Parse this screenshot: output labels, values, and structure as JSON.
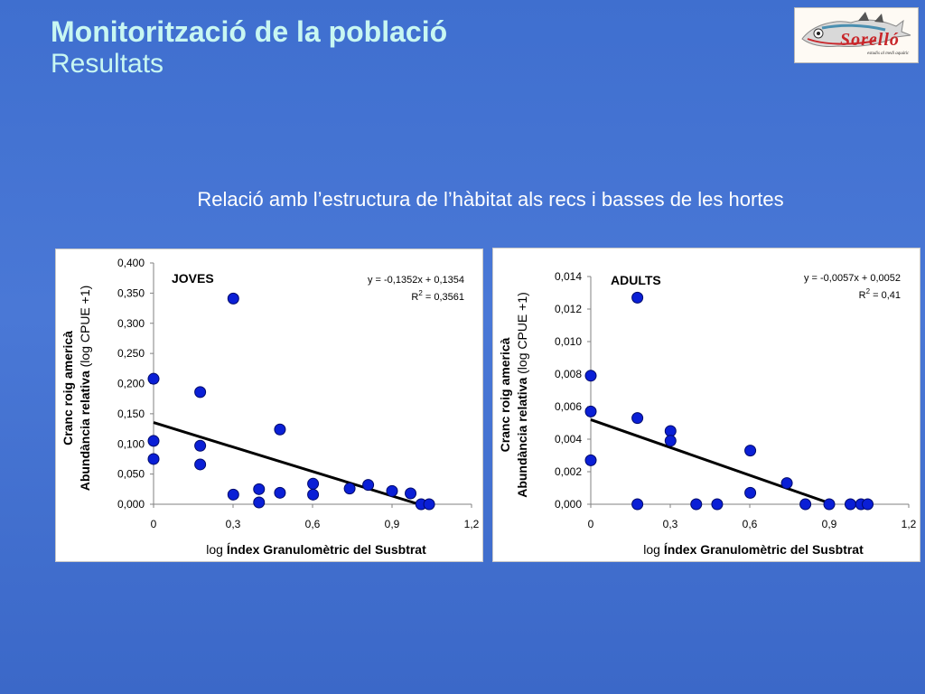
{
  "header": {
    "title": "Monitorització de la població",
    "subtitle": "Resultats",
    "section_heading": "Relació amb l’estructura de l’hàbitat als recs i basses de les hortes"
  },
  "logo": {
    "brand": "Sorelló",
    "tagline": "estudis al medi aquàtic"
  },
  "chart_data": [
    {
      "type": "scatter",
      "label": "JOVES",
      "xlabel_prefix": "log ",
      "xlabel_bold": "Índex Granulomètric del Susbtrat",
      "ylabel_line1": "Cranc roig americà",
      "ylabel_line2_bold": "Abundància relativa",
      "ylabel_line2_rest": " (log CPUE +1)",
      "xlim": [
        0,
        1.2
      ],
      "ylim": [
        0,
        0.4
      ],
      "xticks": [
        0,
        0.3,
        0.6,
        0.9,
        1.2
      ],
      "xtick_labels": [
        "0",
        "0,3",
        "0,6",
        "0,9",
        "1,2"
      ],
      "yticks": [
        0,
        0.05,
        0.1,
        0.15,
        0.2,
        0.25,
        0.3,
        0.35,
        0.4
      ],
      "ytick_labels": [
        "0,000",
        "0,050",
        "0,100",
        "0,150",
        "0,200",
        "0,250",
        "0,300",
        "0,350",
        "0,400"
      ],
      "equation": "y = -0,1352x + 0,1354",
      "r2_label": "R",
      "r2_sup": "2",
      "r2_value": " = 0,3561",
      "trendline": {
        "slope": -0.1352,
        "intercept": 0.1354,
        "x_range": [
          0,
          1.0015
        ]
      },
      "points": [
        {
          "x": 0,
          "y": 0.208
        },
        {
          "x": 0,
          "y": 0.105
        },
        {
          "x": 0,
          "y": 0.075
        },
        {
          "x": 0.176,
          "y": 0.186
        },
        {
          "x": 0.176,
          "y": 0.097
        },
        {
          "x": 0.176,
          "y": 0.066
        },
        {
          "x": 0.301,
          "y": 0.341
        },
        {
          "x": 0.301,
          "y": 0.016
        },
        {
          "x": 0.398,
          "y": 0.025
        },
        {
          "x": 0.398,
          "y": 0.003
        },
        {
          "x": 0.477,
          "y": 0.124
        },
        {
          "x": 0.477,
          "y": 0.019
        },
        {
          "x": 0.602,
          "y": 0.034
        },
        {
          "x": 0.602,
          "y": 0.016
        },
        {
          "x": 0.74,
          "y": 0.026
        },
        {
          "x": 0.81,
          "y": 0.032
        },
        {
          "x": 0.9,
          "y": 0.022
        },
        {
          "x": 0.97,
          "y": 0.018
        },
        {
          "x": 1.01,
          "y": 0.0
        },
        {
          "x": 1.04,
          "y": 0.0
        }
      ],
      "grid": false,
      "marker_color": "#0a1fd6"
    },
    {
      "type": "scatter",
      "label": "ADULTS",
      "xlabel_prefix": "log ",
      "xlabel_bold": "Índex Granulomètric del Susbtrat",
      "ylabel_line1": "Cranc roig americà",
      "ylabel_line2_bold": "Abundància relativa",
      "ylabel_line2_rest": " (log CPUE +1)",
      "xlim": [
        0,
        1.2
      ],
      "ylim": [
        0,
        0.014
      ],
      "xticks": [
        0,
        0.3,
        0.6,
        0.9,
        1.2
      ],
      "xtick_labels": [
        "0",
        "0,3",
        "0,6",
        "0,9",
        "1,2"
      ],
      "yticks": [
        0,
        0.002,
        0.004,
        0.006,
        0.008,
        0.01,
        0.012,
        0.014
      ],
      "ytick_labels": [
        "0,000",
        "0,002",
        "0,004",
        "0,006",
        "0,008",
        "0,010",
        "0,012",
        "0,014"
      ],
      "equation": "y = -0,0057x + 0,0052",
      "r2_label": "R",
      "r2_sup": "2",
      "r2_value": " = 0,41",
      "trendline": {
        "slope": -0.0057,
        "intercept": 0.0052,
        "x_range": [
          0,
          0.912
        ]
      },
      "points": [
        {
          "x": 0,
          "y": 0.0079
        },
        {
          "x": 0,
          "y": 0.0057
        },
        {
          "x": 0,
          "y": 0.0027
        },
        {
          "x": 0.176,
          "y": 0.0127
        },
        {
          "x": 0.176,
          "y": 0.0053
        },
        {
          "x": 0.176,
          "y": 0.0
        },
        {
          "x": 0.301,
          "y": 0.0045
        },
        {
          "x": 0.301,
          "y": 0.0039
        },
        {
          "x": 0.398,
          "y": 0.0
        },
        {
          "x": 0.477,
          "y": 0.0
        },
        {
          "x": 0.602,
          "y": 0.0033
        },
        {
          "x": 0.602,
          "y": 0.0007
        },
        {
          "x": 0.74,
          "y": 0.0013
        },
        {
          "x": 0.81,
          "y": 0.0
        },
        {
          "x": 0.9,
          "y": 0.0
        },
        {
          "x": 0.98,
          "y": 0.0
        },
        {
          "x": 1.02,
          "y": 0.0
        },
        {
          "x": 1.045,
          "y": 0.0
        }
      ],
      "grid": false,
      "marker_color": "#0a1fd6"
    }
  ]
}
